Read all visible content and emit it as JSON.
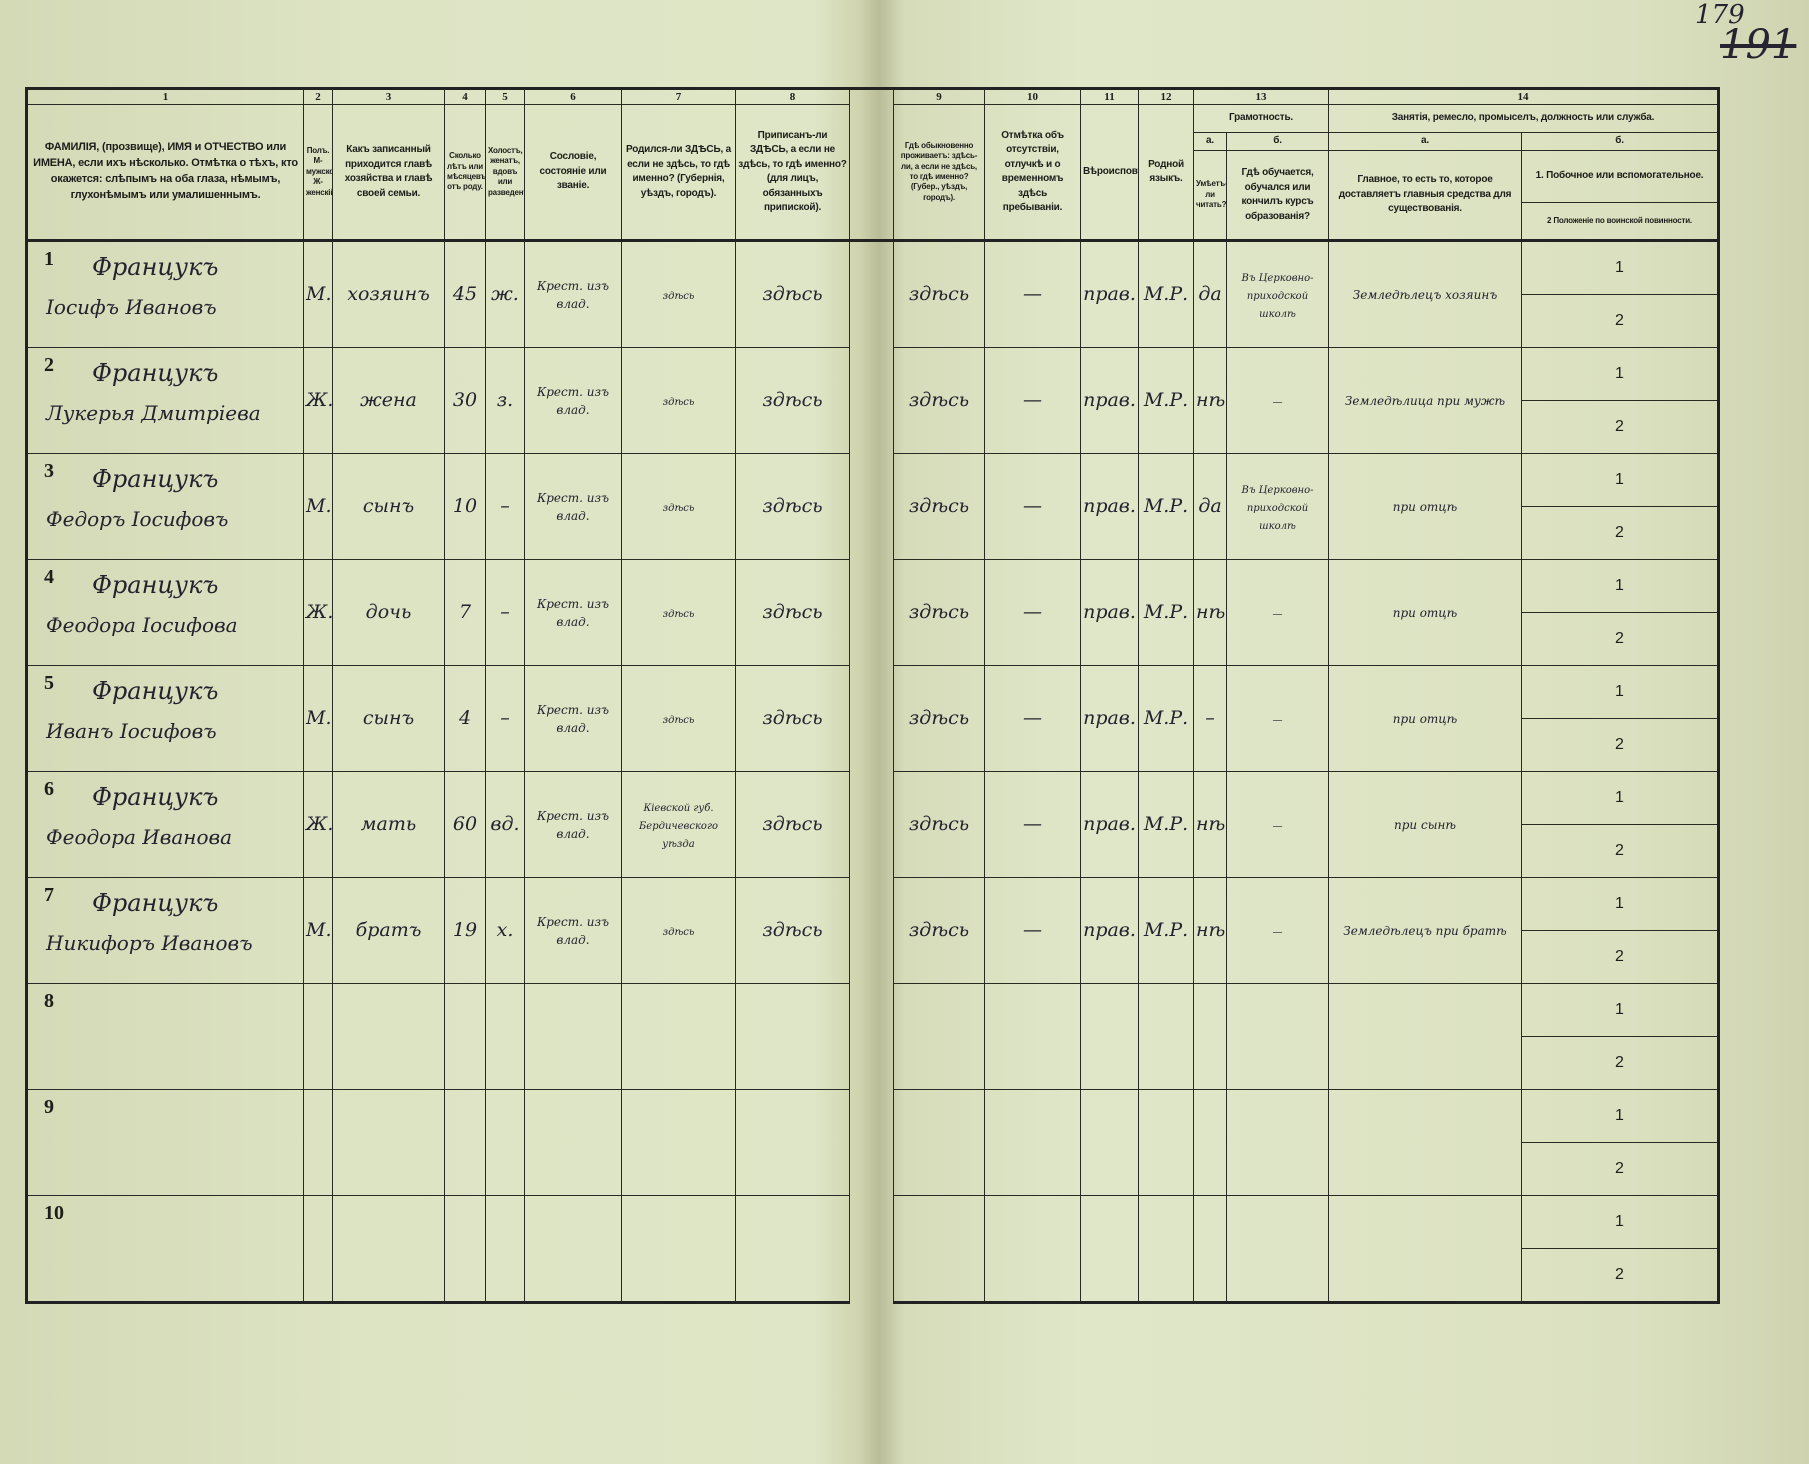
{
  "page_numbers": {
    "current": "179",
    "crossed_out": "191"
  },
  "columns": {
    "numbers": [
      "1",
      "2",
      "3",
      "4",
      "5",
      "6",
      "7",
      "8",
      "9",
      "10",
      "11",
      "12",
      "13",
      "14"
    ],
    "c1": "ФАМИЛІЯ, (прозвище), ИМЯ и ОТЧЕСТВО или ИМЕНА, если ихъ нѣсколько. Отмѣтка о тѣхъ, кто окажется: слѣпымъ на оба глаза, нѣмымъ, глухонѣмымъ или умалишеннымъ.",
    "c2": "Полъ. М-мужской. Ж-женскій.",
    "c3": "Какъ записанный приходится главѣ хозяйства и главѣ своей семьи.",
    "c4": "Сколько лѣтъ или мѣсяцевъ отъ роду.",
    "c5": "Холостъ, женатъ, вдовъ или разведенъ.",
    "c6": "Сословіе, состояніе или званіе.",
    "c7": "Родился-ли ЗДѢСЬ, а если не здѣсь, то гдѣ именно? (Губернія, уѣздъ, городъ).",
    "c8": "Приписанъ-ли ЗДѢСЬ, а если не здѣсь, то гдѣ именно? (для лицъ, обязанныхъ припиской).",
    "c9": "Гдѣ обыкновенно проживаетъ: здѣсь-ли, а если не здѣсь, то гдѣ именно? (Губер., уѣздъ, городъ).",
    "c10": "Отмѣтка объ отсутствіи, отлучкѣ и о временномъ здѣсь пребываніи.",
    "c11": "Вѣроисповѣданіе.",
    "c12": "Родной языкъ.",
    "c13": "Грамотность.",
    "c13a_label": "а.",
    "c13a": "Умѣетъ-ли читать?",
    "c13b_label": "б.",
    "c13b": "Гдѣ обучается, обучался или кончилъ курсъ образованія?",
    "c14": "Занятія, ремесло, промыселъ, должность или служба.",
    "c14a_label": "а.",
    "c14a": "Главное, то есть то, которое доставляетъ главныя средства для существованія.",
    "c14b_label": "б.",
    "c14b1": "1. Побочное или вспомогательное.",
    "c14b2": "2 Положеніе по воинской повинности."
  },
  "rows": [
    {
      "n": "1",
      "surname": "Францукъ",
      "given": "Іосифъ Ивановъ",
      "sex": "М.",
      "relation": "хозяинъ",
      "age": "45",
      "marital": "ж.",
      "estate": "Крест. изъ влад.",
      "born": "здѣсь",
      "registered": "здѣсь",
      "resides": "здѣсь",
      "absence": "—",
      "religion": "прав.",
      "language": "М.Р.",
      "literate": "да",
      "education": "Въ Церковно-приходской школѣ",
      "occupation": "Земледѣлецъ хозяинъ",
      "sub1": "1",
      "sub2": "2"
    },
    {
      "n": "2",
      "surname": "Францукъ",
      "given": "Лукерья Дмитріева",
      "sex": "Ж.",
      "relation": "жена",
      "age": "30",
      "marital": "з.",
      "estate": "Крест. изъ влад.",
      "born": "здѣсь",
      "registered": "здѣсь",
      "resides": "здѣсь",
      "absence": "—",
      "religion": "прав.",
      "language": "М.Р.",
      "literate": "нѣтъ",
      "education": "—",
      "occupation": "Земледѣлица при мужѣ",
      "sub1": "1",
      "sub2": "2"
    },
    {
      "n": "3",
      "surname": "Францукъ",
      "given": "Федоръ Іосифовъ",
      "sex": "М.",
      "relation": "сынъ",
      "age": "10",
      "marital": "–",
      "estate": "Крест. изъ влад.",
      "born": "здѣсь",
      "registered": "здѣсь",
      "resides": "здѣсь",
      "absence": "—",
      "religion": "прав.",
      "language": "М.Р.",
      "literate": "да",
      "education": "Въ Церковно-приходской школѣ",
      "occupation": "при отцѣ",
      "sub1": "1",
      "sub2": "2"
    },
    {
      "n": "4",
      "surname": "Францукъ",
      "given": "Феодора Іосифова",
      "sex": "Ж.",
      "relation": "дочь",
      "age": "7",
      "marital": "–",
      "estate": "Крест. изъ влад.",
      "born": "здѣсь",
      "registered": "здѣсь",
      "resides": "здѣсь",
      "absence": "—",
      "religion": "прав.",
      "language": "М.Р.",
      "literate": "нѣтъ",
      "education": "—",
      "occupation": "при отцѣ",
      "sub1": "1",
      "sub2": "2"
    },
    {
      "n": "5",
      "surname": "Францукъ",
      "given": "Иванъ Іосифовъ",
      "sex": "М.",
      "relation": "сынъ",
      "age": "4",
      "marital": "–",
      "estate": "Крест. изъ влад.",
      "born": "здѣсь",
      "registered": "здѣсь",
      "resides": "здѣсь",
      "absence": "—",
      "religion": "прав.",
      "language": "М.Р.",
      "literate": "–",
      "education": "—",
      "occupation": "при отцѣ",
      "sub1": "1",
      "sub2": "2"
    },
    {
      "n": "6",
      "surname": "Францукъ",
      "given": "Феодора Иванова",
      "sex": "Ж.",
      "relation": "мать",
      "age": "60",
      "marital": "вд.",
      "estate": "Крест. изъ влад.",
      "born": "Кіевской губ. Бердичевского уѣзда",
      "registered": "здѣсь",
      "resides": "здѣсь",
      "absence": "—",
      "religion": "прав.",
      "language": "М.Р.",
      "literate": "нѣтъ",
      "education": "—",
      "occupation": "при сынѣ",
      "sub1": "1",
      "sub2": "2"
    },
    {
      "n": "7",
      "surname": "Францукъ",
      "given": "Никифоръ Ивановъ",
      "sex": "М.",
      "relation": "братъ",
      "age": "19",
      "marital": "х.",
      "estate": "Крест. изъ влад.",
      "born": "здѣсь",
      "registered": "здѣсь",
      "resides": "здѣсь",
      "absence": "—",
      "religion": "прав.",
      "language": "М.Р.",
      "literate": "нѣтъ",
      "education": "—",
      "occupation": "Земледѣлецъ при братѣ",
      "sub1": "1",
      "sub2": "2"
    },
    {
      "n": "8",
      "surname": "",
      "given": "",
      "sex": "",
      "relation": "",
      "age": "",
      "marital": "",
      "estate": "",
      "born": "",
      "registered": "",
      "resides": "",
      "absence": "",
      "religion": "",
      "language": "",
      "literate": "",
      "education": "",
      "occupation": "",
      "sub1": "1",
      "sub2": "2"
    },
    {
      "n": "9",
      "surname": "",
      "given": "",
      "sex": "",
      "relation": "",
      "age": "",
      "marital": "",
      "estate": "",
      "born": "",
      "registered": "",
      "resides": "",
      "absence": "",
      "religion": "",
      "language": "",
      "literate": "",
      "education": "",
      "occupation": "",
      "sub1": "1",
      "sub2": "2"
    },
    {
      "n": "10",
      "surname": "",
      "given": "",
      "sex": "",
      "relation": "",
      "age": "",
      "marital": "",
      "estate": "",
      "born": "",
      "registered": "",
      "resides": "",
      "absence": "",
      "religion": "",
      "language": "",
      "literate": "",
      "education": "",
      "occupation": "",
      "sub1": "1",
      "sub2": "2"
    }
  ]
}
